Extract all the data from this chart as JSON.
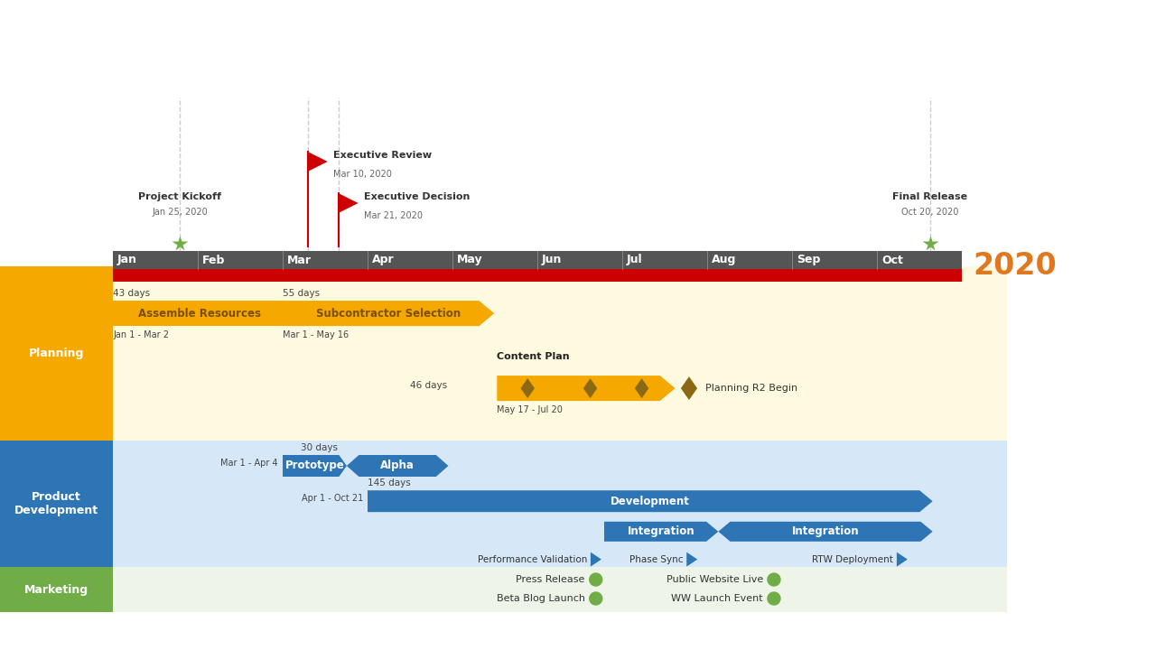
{
  "title_year": "2020",
  "title_color": "#E07820",
  "bg_color": "#FFFFFF",
  "timeline_bg": "#555555",
  "timeline_red": "#CC0000",
  "months": [
    "Jan",
    "Feb",
    "Mar",
    "Apr",
    "May",
    "Jun",
    "Jul",
    "Aug",
    "Sep",
    "Oct"
  ],
  "amber": "#F5A800",
  "amber_dark": "#8B6914",
  "blue": "#2E75B6",
  "green": "#70AD47",
  "swimlane_labels": [
    "Planning",
    "Product\nDevelopment",
    "Marketing"
  ],
  "swimlane_label_bg": [
    "#F5A800",
    "#2E75B6",
    "#70AD47"
  ],
  "swimlane_lane_bg": [
    "#FEFAE0",
    "#D6E8F7",
    "#EEF5E8"
  ]
}
